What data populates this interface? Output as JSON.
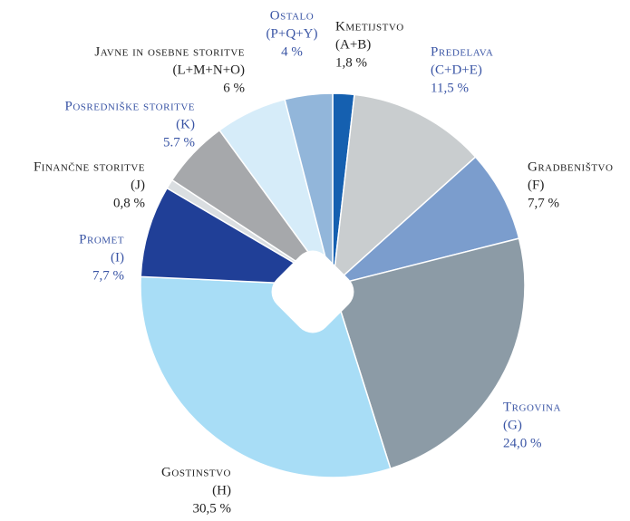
{
  "chart_data": {
    "type": "pie",
    "categories": [
      "Kmetijstvo",
      "Predelava",
      "Gradbeništvo",
      "Trgovina",
      "Gostinstvo",
      "Promet",
      "Finančne storitve",
      "Posredniške storitve",
      "Javne in osebne storitve",
      "Ostalo"
    ],
    "codes": [
      "(A+B)",
      "(C+D+E)",
      "(F)",
      "(G)",
      "(H)",
      "(I)",
      "(J)",
      "(K)",
      "(L+M+N+O)",
      "(P+Q+Y)"
    ],
    "values": [
      1.8,
      11.5,
      7.7,
      24.0,
      30.5,
      7.7,
      0.8,
      5.7,
      6,
      4
    ],
    "value_labels": [
      "1,8 %",
      "11,5 %",
      "7,7 %",
      "24,0 %",
      "30,5 %",
      "7,7 %",
      "0,8 %",
      "5.7 %",
      "6 %",
      "4 %"
    ],
    "colors": [
      "#1560b0",
      "#c9cdcf",
      "#7b9dcd",
      "#8c9ba6",
      "#a8ddf6",
      "#203f97",
      "#dadee1",
      "#a6a8ab",
      "#d6ecf9",
      "#92b6da"
    ],
    "label_colors": [
      "#222222",
      "#3a55a5",
      "#222222",
      "#3a55a5",
      "#222222",
      "#3a55a5",
      "#222222",
      "#3a55a5",
      "#222222",
      "#3a55a5"
    ]
  }
}
